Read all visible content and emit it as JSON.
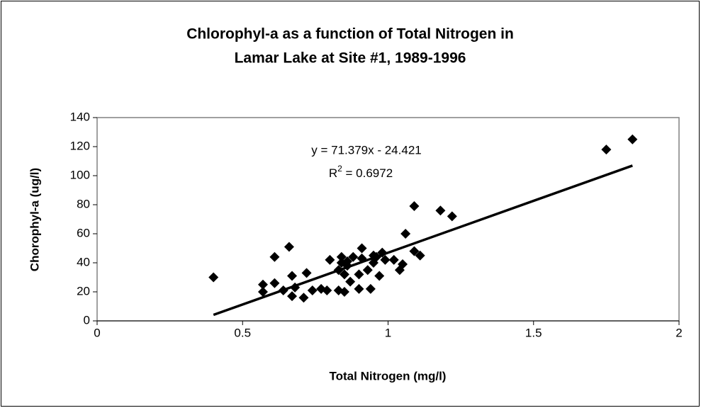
{
  "chart_data": {
    "type": "scatter",
    "title": [
      "Chlorophyl-a as a function of Total Nitrogen in",
      "Lamar Lake at Site #1, 1989-1996"
    ],
    "x_label": "Total Nitrogen (mg/l)",
    "y_label": "Chorophyl-a (ug/l)",
    "color": "#000000",
    "x": [
      0.4,
      0.57,
      0.57,
      0.61,
      0.66,
      0.61,
      0.64,
      0.67,
      0.67,
      0.68,
      0.71,
      0.72,
      0.74,
      0.77,
      0.79,
      0.8,
      0.83,
      0.83,
      0.84,
      0.84,
      0.85,
      0.85,
      0.86,
      0.86,
      0.87,
      0.88,
      0.9,
      0.91,
      0.9,
      0.91,
      0.93,
      0.94,
      0.95,
      0.95,
      0.96,
      0.97,
      0.98,
      0.99,
      1.02,
      1.04,
      1.05,
      1.06,
      1.09,
      1.09,
      1.11,
      1.18,
      1.22,
      1.75,
      1.84
    ],
    "values": [
      30,
      25,
      20,
      44,
      51,
      26,
      21,
      31,
      17,
      23,
      16,
      33,
      21,
      22,
      21,
      42,
      21,
      35,
      40,
      44,
      32,
      20,
      38,
      41,
      27,
      44,
      32,
      50,
      22,
      43,
      35,
      22,
      45,
      40,
      44,
      31,
      47,
      42,
      42,
      35,
      39,
      60,
      79,
      48,
      45,
      76,
      72,
      118,
      125
    ],
    "trendline": {
      "slope": 71.379,
      "intercept": -24.421,
      "x_range": [
        0.4,
        1.84
      ],
      "equation": "y = 71.379x - 24.421",
      "r_squared": [
        "R",
        "2",
        " = 0.6972"
      ]
    },
    "xlim": [
      0,
      2
    ],
    "xticks": [
      0,
      0.5,
      1,
      1.5,
      2
    ],
    "ylim": [
      0,
      140
    ],
    "yticks": [
      0,
      20,
      40,
      60,
      80,
      100,
      120,
      140
    ],
    "grid": false
  }
}
